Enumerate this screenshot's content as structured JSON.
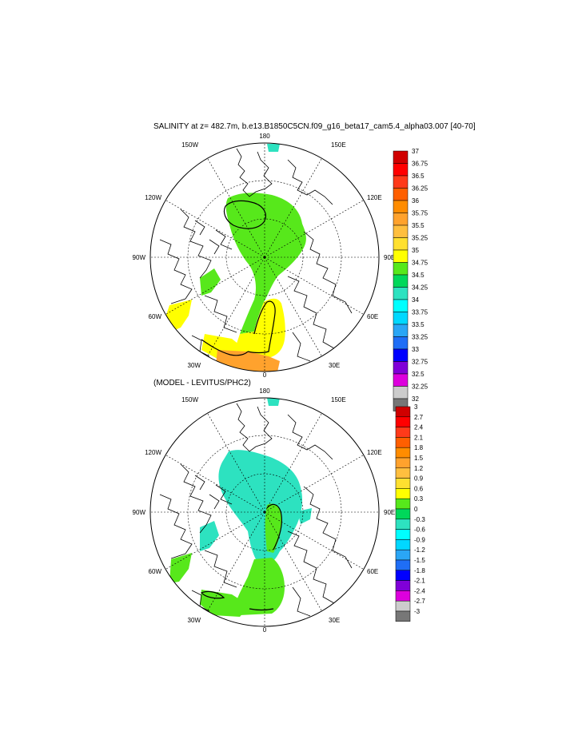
{
  "title": "SALINITY at z= 482.7m, b.e13.B1850C5CN.f09_g16_beta17_cam5.4_alpha03.007 [40-70]",
  "subtitle": "(MODEL - LEVITUS/PHC2)",
  "chart_data": [
    {
      "type": "heatmap",
      "projection": "north polar stereographic",
      "title": "SALINITY at z= 482.7m, b.e13.B1850C5CN.f09_g16_beta17_cam5.4_alpha03.007 [40-70]",
      "lon_labels": [
        "180",
        "150E",
        "120E",
        "90E",
        "60E",
        "30E",
        "0",
        "30W",
        "60W",
        "90W",
        "120W",
        "150W"
      ],
      "colorbar": {
        "levels": [
          "37",
          "36.75",
          "36.5",
          "36.25",
          "36",
          "35.75",
          "35.5",
          "35.25",
          "35",
          "34.75",
          "34.5",
          "34.25",
          "34",
          "33.75",
          "33.5",
          "33.25",
          "33",
          "32.75",
          "32.5",
          "32.25",
          "32"
        ],
        "colors": [
          "#d00000",
          "#ff0000",
          "#ff3a1a",
          "#ff5f00",
          "#ff8c00",
          "#ffa22d",
          "#ffbf3f",
          "#ffe030",
          "#ffff00",
          "#57e81b",
          "#00d85a",
          "#2de2c0",
          "#00ffff",
          "#00d8ff",
          "#2aa6f5",
          "#1f6ef6",
          "#0000ff",
          "#8000d8",
          "#dd00dd",
          "#cccccc",
          "#777777"
        ]
      }
    },
    {
      "type": "heatmap",
      "projection": "north polar stereographic",
      "title": "(MODEL - LEVITUS/PHC2)",
      "lon_labels": [
        "180",
        "150E",
        "120E",
        "90E",
        "60E",
        "30E",
        "0",
        "30W",
        "60W",
        "90W",
        "120W",
        "150W"
      ],
      "colorbar": {
        "levels": [
          "3",
          "2.7",
          "2.4",
          "2.1",
          "1.8",
          "1.5",
          "1.2",
          "0.9",
          "0.6",
          "0.3",
          "0",
          "-0.3",
          "-0.6",
          "-0.9",
          "-1.2",
          "-1.5",
          "-1.8",
          "-2.1",
          "-2.4",
          "-2.7",
          "-3"
        ],
        "colors": [
          "#d00000",
          "#ff0000",
          "#ff3a1a",
          "#ff5f00",
          "#ff8c00",
          "#ffa22d",
          "#ffbf3f",
          "#ffe030",
          "#ffff00",
          "#57e81b",
          "#00d85a",
          "#2de2c0",
          "#00ffff",
          "#00d8ff",
          "#2aa6f5",
          "#1f6ef6",
          "#0000ff",
          "#8000d8",
          "#dd00dd",
          "#cccccc",
          "#777777"
        ]
      }
    }
  ]
}
